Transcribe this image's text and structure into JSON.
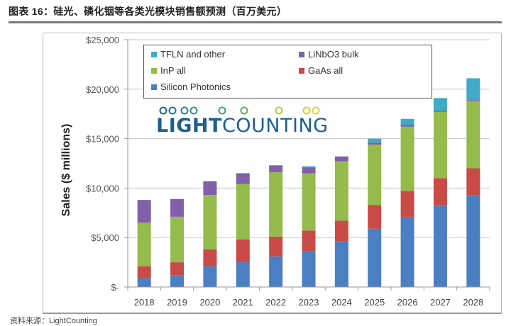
{
  "page": {
    "title": "图表 16：硅光、磷化铟等各类光模块销售额预测（百万美元）",
    "source": "资料来源：LightCounting"
  },
  "logo": {
    "bold": "LIGHT",
    "regular": "COUNTING"
  },
  "colors": {
    "Silicon Photonics": "#4a7fc1",
    "GaAs all": "#c94a46",
    "InP all": "#94bb4b",
    "LiNbO3 bulk": "#8160a9",
    "TFLN and other": "#41aac6"
  },
  "chart_data": {
    "type": "bar",
    "stacked": true,
    "title": "",
    "xlabel": "",
    "ylabel": "Sales ($ millions)",
    "ylim": [
      0,
      25000
    ],
    "yticks": [
      0,
      5000,
      10000,
      15000,
      20000,
      25000
    ],
    "ytick_labels": [
      "$-",
      "$5,000",
      "$10,000",
      "$15,000",
      "$20,000",
      "$25,000"
    ],
    "grid": true,
    "legend_position": "top-center",
    "legend": [
      "TFLN and other",
      "LiNbO3 bulk",
      "InP all",
      "GaAs all",
      "Silicon Photonics"
    ],
    "categories": [
      "2018",
      "2019",
      "2020",
      "2021",
      "2022",
      "2023",
      "2024",
      "2025",
      "2026",
      "2027",
      "2028"
    ],
    "series": [
      {
        "name": "Silicon Photonics",
        "values": [
          900,
          1200,
          2100,
          2500,
          3100,
          3600,
          4600,
          5900,
          7100,
          8300,
          9300
        ]
      },
      {
        "name": "GaAs all",
        "values": [
          1200,
          1300,
          1700,
          2300,
          2000,
          2100,
          2100,
          2400,
          2600,
          2700,
          2700
        ]
      },
      {
        "name": "InP all",
        "values": [
          4400,
          4600,
          5500,
          5600,
          6500,
          5800,
          6000,
          6100,
          6500,
          6700,
          6800
        ]
      },
      {
        "name": "LiNbO3 bulk",
        "values": [
          2300,
          1800,
          1400,
          1100,
          700,
          600,
          500,
          200,
          200,
          100,
          100
        ]
      },
      {
        "name": "TFLN and other",
        "values": [
          0,
          0,
          0,
          0,
          0,
          100,
          0,
          400,
          600,
          1300,
          2200
        ]
      }
    ]
  }
}
